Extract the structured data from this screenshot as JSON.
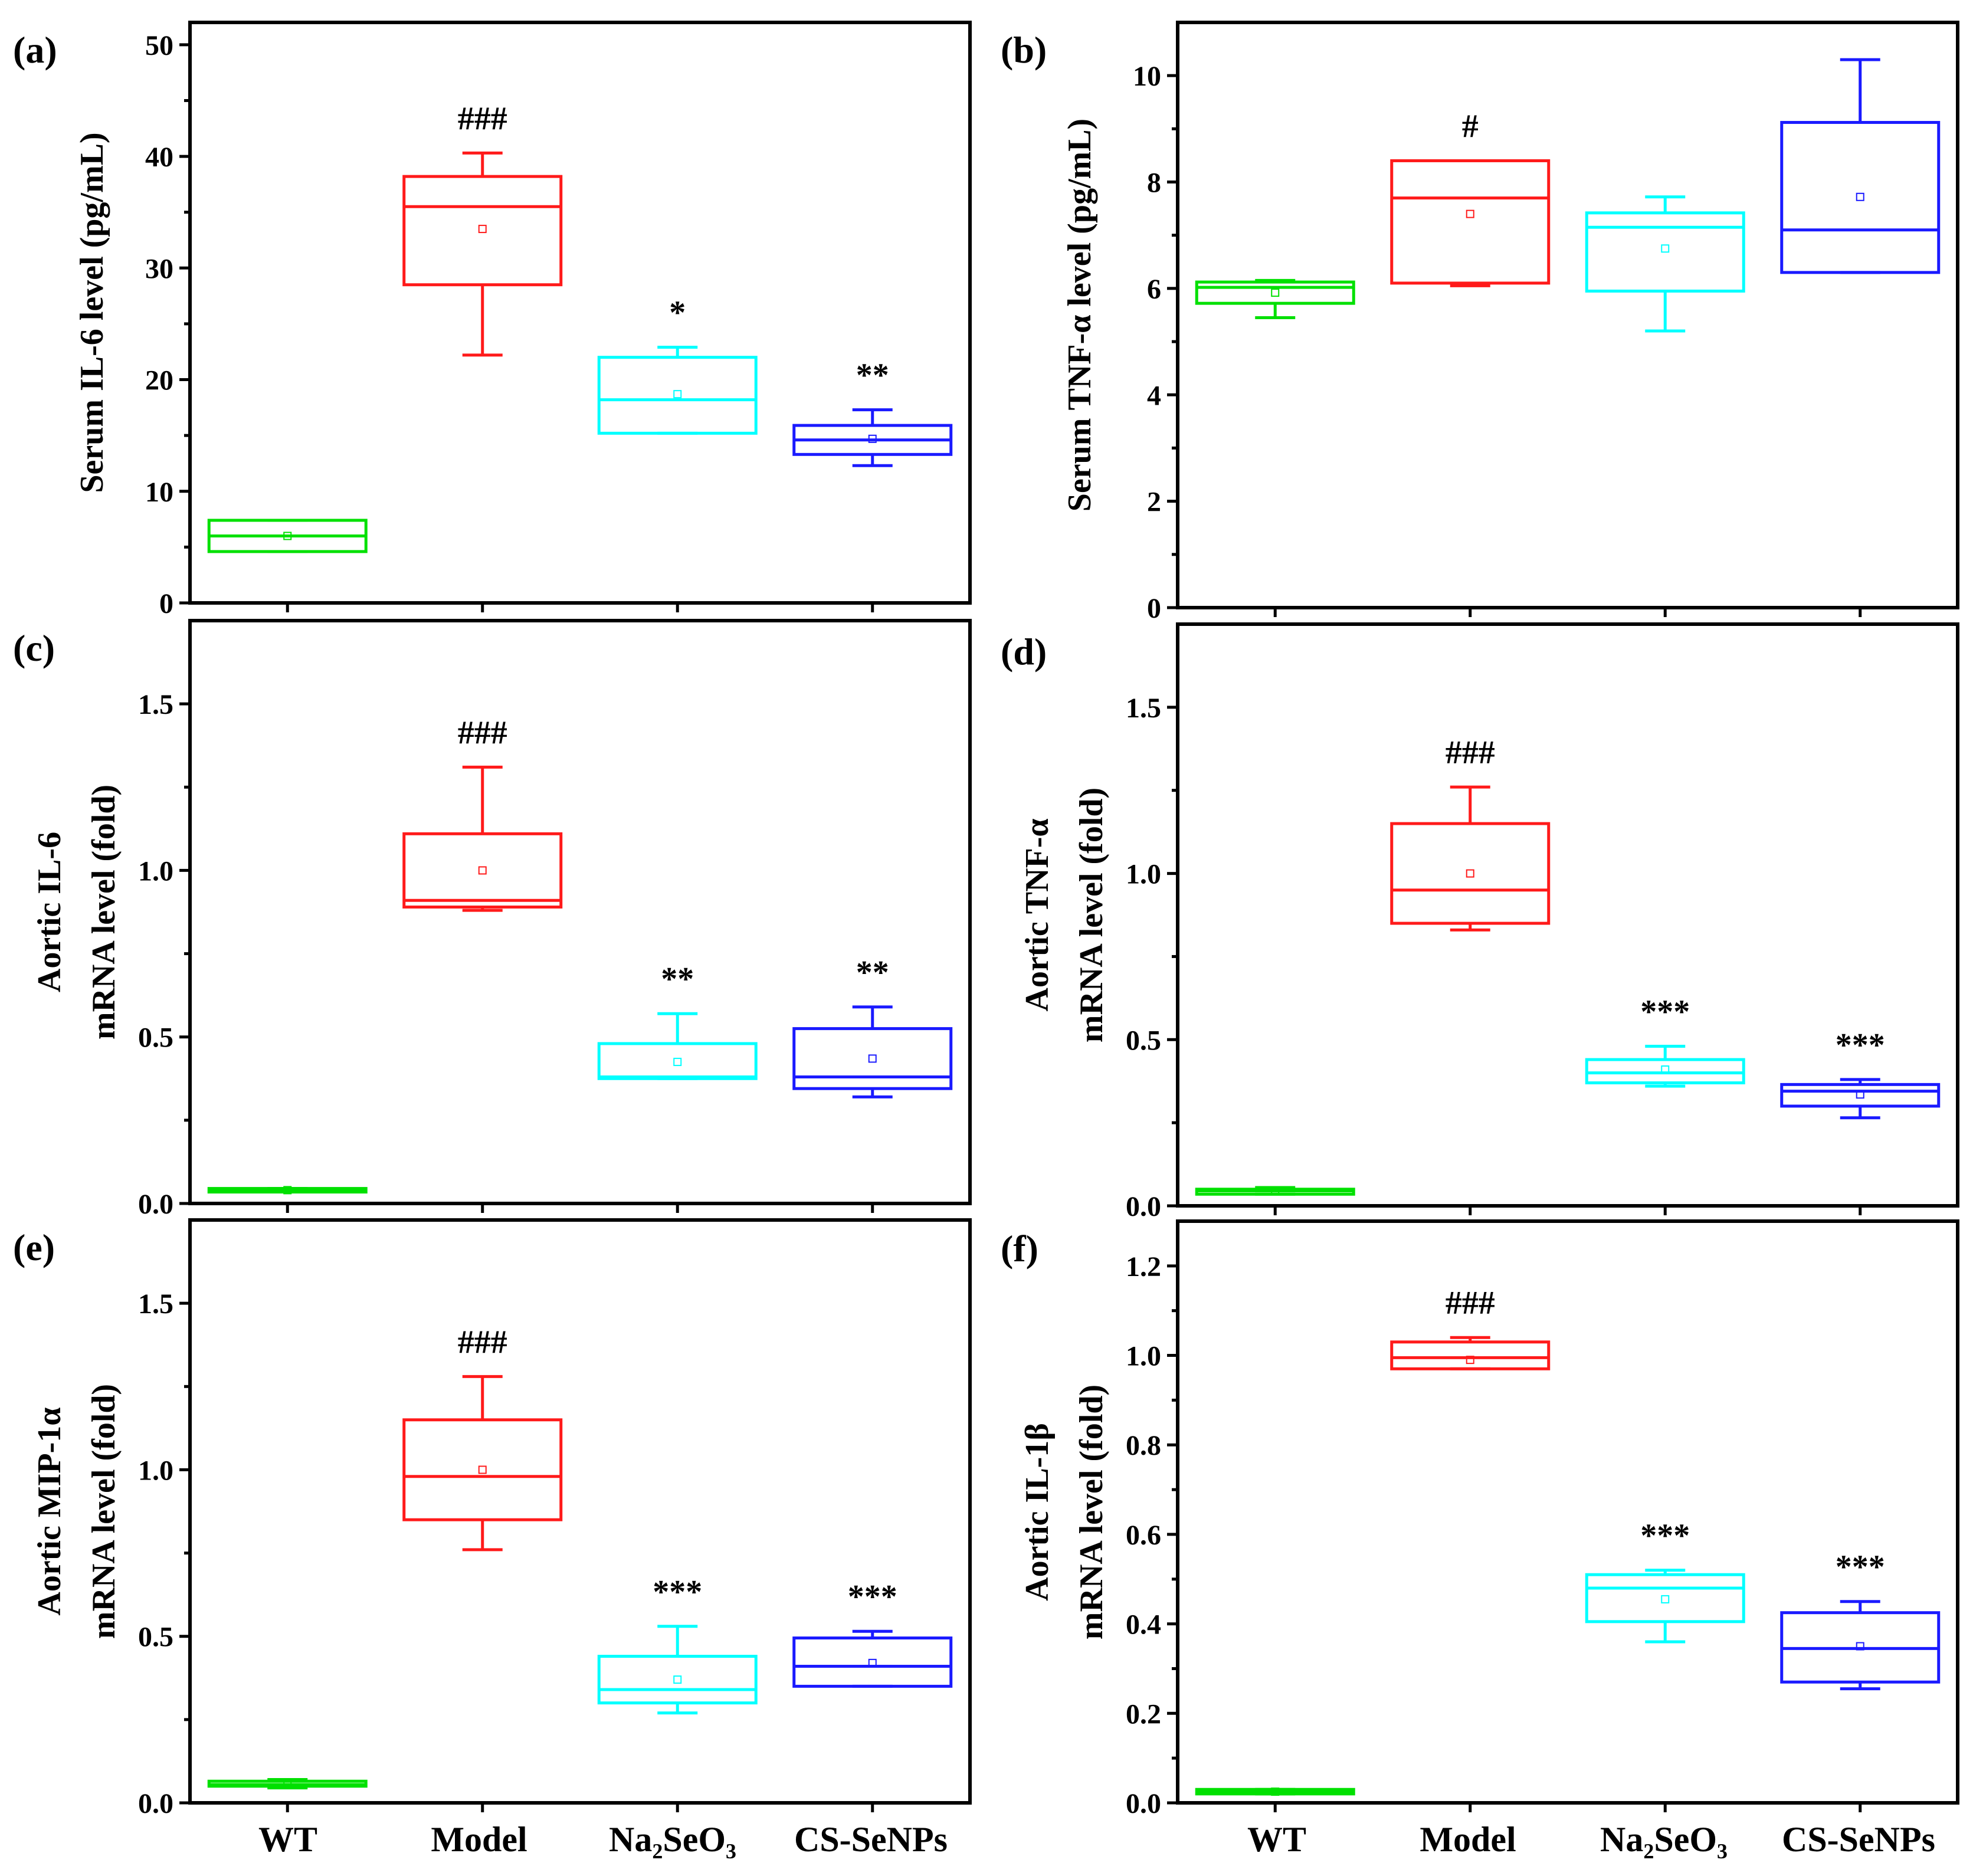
{
  "colors": {
    "WT": "#00e000",
    "Model": "#ff1a1a",
    "Na2SeO3": "#00ffff",
    "CS-SeNPs": "#1a1aff"
  },
  "categories": [
    "WT",
    "Model",
    "Na₂SeO₃",
    "CS-SeNPs"
  ],
  "chart_data": [
    {
      "type": "box",
      "panel": "(a)",
      "ylabel": [
        "Serum IL-6 level (pg/mL)"
      ],
      "ylim": [
        0,
        52
      ],
      "yticks": [
        0,
        10,
        20,
        30,
        40,
        50
      ],
      "tickfmt": 0,
      "categories": [
        "WT",
        "Model",
        "Na₂SeO₃",
        "CS-SeNPs"
      ],
      "boxes": [
        {
          "whislo": 4.6,
          "q1": 4.6,
          "med": 6.0,
          "q3": 7.4,
          "whishi": 7.4,
          "mean": 6.0,
          "sig": ""
        },
        {
          "whislo": 22.2,
          "q1": 28.5,
          "med": 35.5,
          "q3": 38.2,
          "whishi": 40.3,
          "mean": 33.5,
          "sig": "###"
        },
        {
          "whislo": 15.2,
          "q1": 15.2,
          "med": 18.2,
          "q3": 22.0,
          "whishi": 22.9,
          "mean": 18.7,
          "sig": "*"
        },
        {
          "whislo": 12.3,
          "q1": 13.3,
          "med": 14.6,
          "q3": 15.9,
          "whishi": 17.3,
          "mean": 14.7,
          "sig": "**"
        }
      ]
    },
    {
      "type": "box",
      "panel": "(b)",
      "ylabel": [
        "Serum TNF-α  level (pg/mL)"
      ],
      "ylim": [
        0,
        11
      ],
      "yticks": [
        0,
        2,
        4,
        6,
        8,
        10
      ],
      "tickfmt": 0,
      "categories": [
        "WT",
        "Model",
        "Na₂SeO₃",
        "CS-SeNPs"
      ],
      "boxes": [
        {
          "whislo": 5.45,
          "q1": 5.72,
          "med": 6.02,
          "q3": 6.12,
          "whishi": 6.15,
          "mean": 5.92,
          "sig": ""
        },
        {
          "whislo": 6.05,
          "q1": 6.1,
          "med": 7.7,
          "q3": 8.4,
          "whishi": 8.4,
          "mean": 7.4,
          "sig": "#"
        },
        {
          "whislo": 5.2,
          "q1": 5.95,
          "med": 7.15,
          "q3": 7.42,
          "whishi": 7.72,
          "mean": 6.75,
          "sig": ""
        },
        {
          "whislo": 6.3,
          "q1": 6.3,
          "med": 7.1,
          "q3": 9.12,
          "whishi": 10.3,
          "mean": 7.72,
          "sig": ""
        }
      ]
    },
    {
      "type": "box",
      "panel": "(c)",
      "ylabel": [
        "Aortic IL-6",
        "mRNA level (fold)"
      ],
      "ylim": [
        0,
        1.75
      ],
      "yticks": [
        0.0,
        0.5,
        1.0,
        1.5
      ],
      "tickfmt": 1,
      "categories": [
        "WT",
        "Model",
        "Na₂SeO₃",
        "CS-SeNPs"
      ],
      "boxes": [
        {
          "whislo": 0.035,
          "q1": 0.035,
          "med": 0.04,
          "q3": 0.045,
          "whishi": 0.045,
          "mean": 0.04,
          "sig": ""
        },
        {
          "whislo": 0.88,
          "q1": 0.89,
          "med": 0.91,
          "q3": 1.11,
          "whishi": 1.31,
          "mean": 1.0,
          "sig": "###"
        },
        {
          "whislo": 0.375,
          "q1": 0.375,
          "med": 0.38,
          "q3": 0.48,
          "whishi": 0.57,
          "mean": 0.425,
          "sig": "**"
        },
        {
          "whislo": 0.32,
          "q1": 0.345,
          "med": 0.38,
          "q3": 0.525,
          "whishi": 0.59,
          "mean": 0.435,
          "sig": "**"
        }
      ]
    },
    {
      "type": "box",
      "panel": "(d)",
      "ylabel": [
        "Aortic TNF-α",
        "mRNA level (fold)"
      ],
      "ylim": [
        0,
        1.75
      ],
      "yticks": [
        0.0,
        0.5,
        1.0,
        1.5
      ],
      "tickfmt": 1,
      "categories": [
        "WT",
        "Model",
        "Na₂SeO₃",
        "CS-SeNPs"
      ],
      "boxes": [
        {
          "whislo": 0.035,
          "q1": 0.035,
          "med": 0.045,
          "q3": 0.05,
          "whishi": 0.055,
          "mean": 0.045,
          "sig": ""
        },
        {
          "whislo": 0.83,
          "q1": 0.85,
          "med": 0.95,
          "q3": 1.15,
          "whishi": 1.26,
          "mean": 1.0,
          "sig": "###"
        },
        {
          "whislo": 0.36,
          "q1": 0.37,
          "med": 0.4,
          "q3": 0.44,
          "whishi": 0.48,
          "mean": 0.41,
          "sig": "***"
        },
        {
          "whislo": 0.265,
          "q1": 0.3,
          "med": 0.345,
          "q3": 0.365,
          "whishi": 0.38,
          "mean": 0.335,
          "sig": "***"
        }
      ]
    },
    {
      "type": "box",
      "panel": "(e)",
      "ylabel": [
        "Aortic MIP-1α",
        "mRNA level (fold)"
      ],
      "ylim": [
        0,
        1.75
      ],
      "yticks": [
        0.0,
        0.5,
        1.0,
        1.5
      ],
      "tickfmt": 1,
      "categories": [
        "WT",
        "Model",
        "Na₂SeO₃",
        "CS-SeNPs"
      ],
      "boxes": [
        {
          "whislo": 0.045,
          "q1": 0.05,
          "med": 0.055,
          "q3": 0.065,
          "whishi": 0.07,
          "mean": 0.057,
          "sig": ""
        },
        {
          "whislo": 0.76,
          "q1": 0.85,
          "med": 0.98,
          "q3": 1.15,
          "whishi": 1.28,
          "mean": 1.0,
          "sig": "###"
        },
        {
          "whislo": 0.27,
          "q1": 0.3,
          "med": 0.34,
          "q3": 0.44,
          "whishi": 0.53,
          "mean": 0.37,
          "sig": "***"
        },
        {
          "whislo": 0.35,
          "q1": 0.35,
          "med": 0.41,
          "q3": 0.495,
          "whishi": 0.515,
          "mean": 0.42,
          "sig": "***"
        }
      ]
    },
    {
      "type": "box",
      "panel": "(f)",
      "ylabel": [
        "Aortic IL-1β",
        "mRNA level (fold)"
      ],
      "ylim": [
        0,
        1.3
      ],
      "yticks": [
        0.0,
        0.2,
        0.4,
        0.6,
        0.8,
        1.0,
        1.2
      ],
      "tickfmt": 1,
      "categories": [
        "WT",
        "Model",
        "Na₂SeO₃",
        "CS-SeNPs"
      ],
      "boxes": [
        {
          "whislo": 0.02,
          "q1": 0.02,
          "med": 0.025,
          "q3": 0.03,
          "whishi": 0.03,
          "mean": 0.025,
          "sig": ""
        },
        {
          "whislo": 0.97,
          "q1": 0.97,
          "med": 0.995,
          "q3": 1.03,
          "whishi": 1.04,
          "mean": 0.99,
          "sig": "###"
        },
        {
          "whislo": 0.36,
          "q1": 0.405,
          "med": 0.48,
          "q3": 0.51,
          "whishi": 0.52,
          "mean": 0.455,
          "sig": "***"
        },
        {
          "whislo": 0.255,
          "q1": 0.27,
          "med": 0.345,
          "q3": 0.425,
          "whishi": 0.45,
          "mean": 0.35,
          "sig": "***"
        }
      ]
    }
  ]
}
